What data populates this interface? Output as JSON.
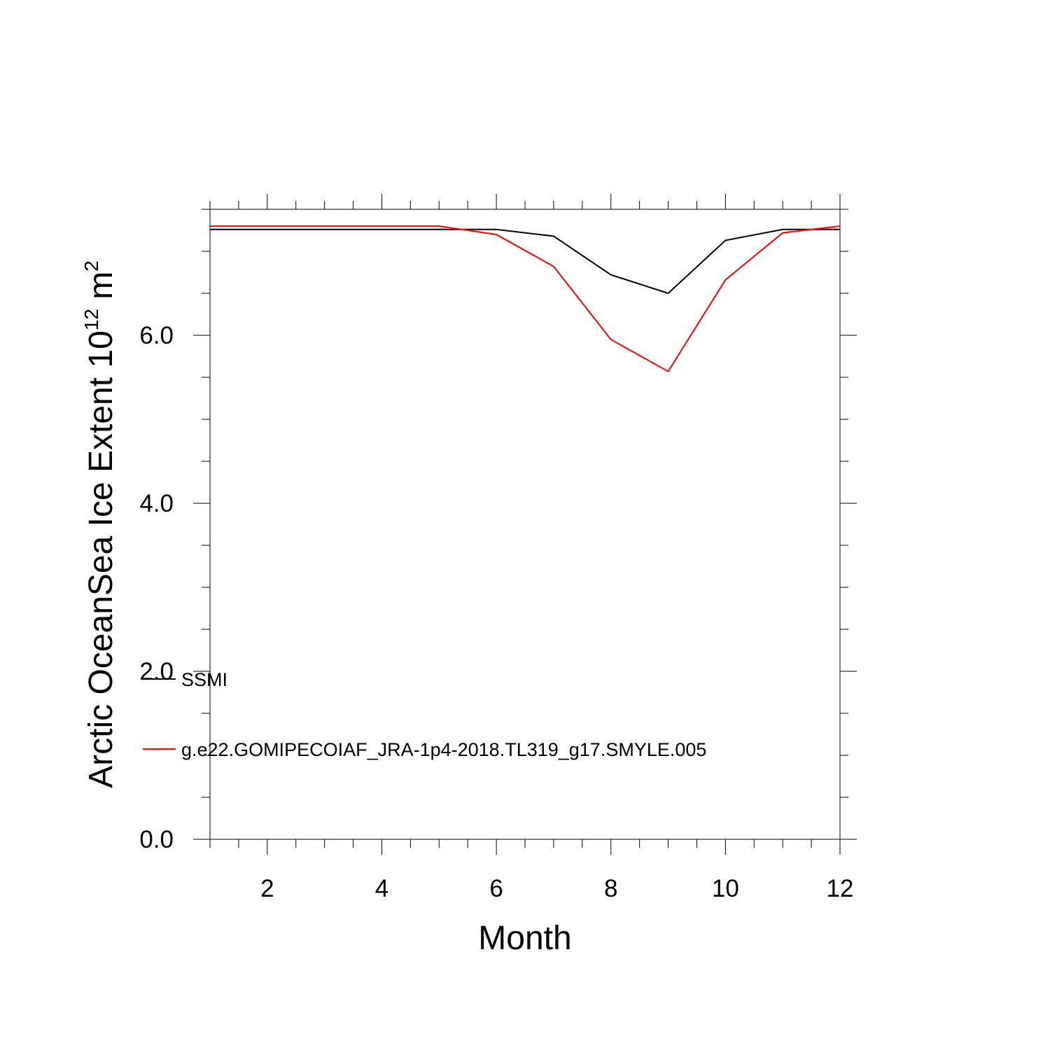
{
  "chart_data": {
    "type": "line",
    "xlabel": "Month",
    "ylabel_main": "Arctic OceanSea Ice Extent 10",
    "ylabel_exp": "12",
    "ylabel_unit": " m",
    "ylabel_unit_exp": "2",
    "xlim": [
      1,
      12
    ],
    "ylim": [
      0,
      7.5
    ],
    "x_major_ticks": [
      2,
      4,
      6,
      8,
      10,
      12
    ],
    "x_tick_labels": [
      "2",
      "4",
      "6",
      "8",
      "10",
      "12"
    ],
    "y_major_ticks": [
      0,
      2,
      4,
      6
    ],
    "y_tick_labels": [
      "0.0",
      "2.0",
      "4.0",
      "6.0"
    ],
    "grid": false,
    "legend_position": "lower-left",
    "x": [
      1,
      2,
      3,
      4,
      5,
      6,
      7,
      8,
      9,
      10,
      11,
      12
    ],
    "series": [
      {
        "name": "SSMI",
        "color": "#000000",
        "values": [
          7.26,
          7.26,
          7.26,
          7.26,
          7.26,
          7.26,
          7.18,
          6.72,
          6.5,
          7.13,
          7.26,
          7.26
        ]
      },
      {
        "name": "g.e22.GOMIPECOIAF_JRA-1p4-2018.TL319_g17.SMYLE.005",
        "color": "#ff0000",
        "values": [
          7.3,
          7.3,
          7.3,
          7.3,
          7.3,
          7.2,
          6.82,
          5.95,
          5.57,
          6.66,
          7.22,
          7.3
        ]
      }
    ]
  }
}
